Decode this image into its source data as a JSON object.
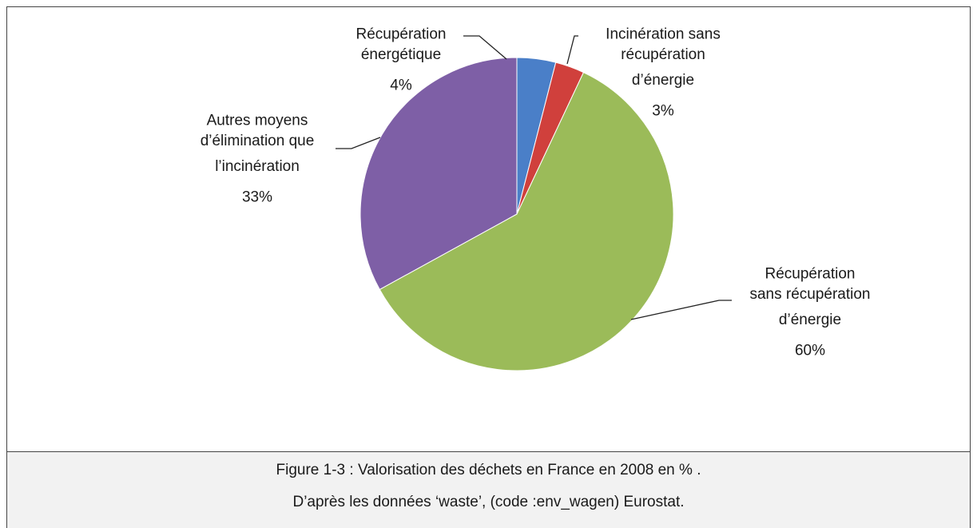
{
  "chart_data": {
    "type": "pie",
    "categories": [
      "Récupération\nénergétique",
      "Incinération sans\nrécupération\nd’énergie",
      "Récupération\nsans récupération\nd’énergie",
      "Autres moyens\nd’élimination que\nl’incinération"
    ],
    "values": [
      4,
      3,
      60,
      33
    ],
    "value_labels": [
      "4%",
      "3%",
      "60%",
      "33%"
    ],
    "colors": [
      "#4a7fc8",
      "#d0403c",
      "#9bbb59",
      "#7e5fa6"
    ]
  },
  "caption": {
    "lines": [
      "Figure 1-3 : Valorisation des déchets en France en 2008 en % .",
      "D’après les données ‘waste’, (code :env_wagen) Eurostat."
    ]
  }
}
